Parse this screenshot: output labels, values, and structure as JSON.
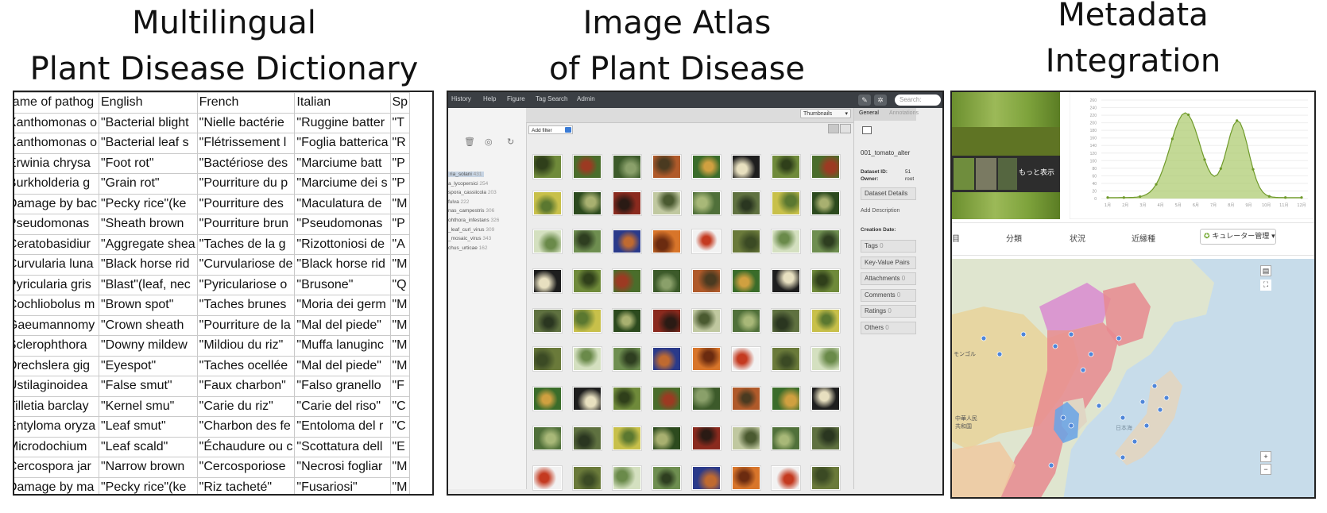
{
  "titles": {
    "dictionary_line1": "Multilingual",
    "dictionary_line2": "Plant Disease Dictionary",
    "atlas_line1": "Image Atlas",
    "atlas_line2": "of Plant Disease",
    "metadata_line1": "Metadata",
    "metadata_line2": "Integration"
  },
  "dictionary": {
    "headers": [
      "me",
      "Name of pathog",
      "English",
      "French",
      "Italian",
      "Sp"
    ],
    "rows": [
      [
        "",
        "\"Xanthomonas o",
        "\"Bacterial blight",
        "\"Nielle bactérie",
        "\"Ruggine batter",
        "\"T"
      ],
      [
        "",
        "\"Xanthomonas o",
        "\"Bacterial leaf s",
        "\"Flétrissement l",
        "\"Foglia batterica",
        "\"R"
      ],
      [
        "",
        "\"Erwinia chrysa",
        "\"Foot rot\"",
        "\"Bactériose des",
        "\"Marciume batt",
        "\"P"
      ],
      [
        "",
        "\"Burkholderia g",
        "\"Grain rot\"",
        "\"Pourriture du p",
        "\"Marciume dei s",
        "\"P"
      ],
      [
        "",
        "\"Damage by bac",
        "\"Pecky rice\"(ke",
        "\"Pourriture des",
        "\"Maculatura de",
        "\"M"
      ],
      [
        "",
        "\"Pseudomonas",
        "\"Sheath brown",
        "\"Pourriture brun",
        "\"Pseudomonas",
        "\"P"
      ],
      [
        "",
        "\"Ceratobasidiur",
        "\"Aggregate shea",
        "\"Taches de la g",
        "\"Rizottoniosi de",
        "\"A"
      ],
      [
        "",
        "\"Curvularia luna",
        "\"Black horse rid",
        "\"Curvulariose de",
        "\"Black horse rid",
        "\"M"
      ],
      [
        "",
        "\"Pyricularia gris",
        "\"Blast\"(leaf, nec",
        "\"Pyriculariose o",
        "\"Brusone\"",
        "\"Q"
      ],
      [
        "",
        "\"Cochliobolus m",
        "\"Brown spot\"",
        "\"Taches brunes",
        "\"Moria dei germ",
        "\"M"
      ],
      [
        "",
        "\"Gaeumannomy",
        "\"Crown sheath",
        "\"Pourriture de la",
        "\"Mal del piede\"",
        "\"M"
      ],
      [
        "",
        "\"Sclerophthora",
        "\"Downy mildew",
        "\"Mildiou du riz\"",
        "\"Muffa lanuginc",
        "\"M"
      ],
      [
        "",
        "\"Drechslera gig",
        "\"Eyespot\"",
        "\"Taches ocellée",
        "\"Mal del piede\"",
        "\"M"
      ],
      [
        "",
        "\"Ustilaginoidea",
        "\"False smut\"",
        "\"Faux charbon\"",
        "\"Falso granello",
        "\"F"
      ],
      [
        "",
        "\"Tilletia barclay",
        "\"Kernel smu\"",
        "\"Carie du riz\"",
        "\"Carie del riso\"",
        "\"C"
      ],
      [
        "",
        "\"Entyloma oryza",
        "\"Leaf smut\"",
        "\"Charbon des fe",
        "\"Entoloma del r",
        "\"C"
      ],
      [
        "",
        "\"Microdochium",
        "\"Leaf scald\"",
        "\"Échaudure ou c",
        "\"Scottatura dell",
        "\"E"
      ],
      [
        "",
        "\"Cercospora jar",
        "\"Narrow brown",
        "\"Cercosporiose",
        "\"Necrosi fogliar",
        "\"M"
      ],
      [
        "",
        "\"Damage by ma",
        "\"Pecky rice\"(ke",
        "\"Riz tacheté\"",
        "\"Fusariosi\"",
        "\"M"
      ]
    ]
  },
  "atlas": {
    "nav": [
      "History",
      "Help",
      "Figure",
      "Tag Search",
      "Admin"
    ],
    "search_placeholder": "Search:",
    "view_mode": "Thumbnails",
    "add_filter": "Add filter",
    "tags": [
      {
        "name": "ria_solani",
        "count": "431"
      },
      {
        "name": "a_lycopersici",
        "count": "254"
      },
      {
        "name": "spora_cassiicola",
        "count": "203"
      },
      {
        "name": "fulva",
        "count": "222"
      },
      {
        "name": "nas_campestris",
        "count": "306"
      },
      {
        "name": "ohthora_infestans",
        "count": "326"
      },
      {
        "name": "_leaf_curl_virus",
        "count": "309"
      },
      {
        "name": "_mosaic_virus",
        "count": "343"
      },
      {
        "name": "chus_urticae",
        "count": "162"
      }
    ],
    "right_tabs": [
      "General",
      "Annotations"
    ],
    "dataset_name": "001_tomato_alter",
    "dataset_id_label": "Dataset ID:",
    "dataset_id_value": "51",
    "owner_label": "Owner:",
    "owner_value": "root",
    "dataset_details": "Dataset Details",
    "add_description": "Add Description",
    "creation_date": "Creation Date:",
    "sections": [
      {
        "label": "Tags",
        "count": "0"
      },
      {
        "label": "Key-Value Pairs",
        "count": ""
      },
      {
        "label": "Attachments",
        "count": "0"
      },
      {
        "label": "Comments",
        "count": "0"
      },
      {
        "label": "Ratings",
        "count": "0"
      },
      {
        "label": "Others",
        "count": "0"
      }
    ]
  },
  "metadata": {
    "more_label": "もっと表示",
    "tabs": [
      "目",
      "分類",
      "状況",
      "近縁種"
    ],
    "curator_button": "キュレーター管理",
    "chart_yticks": [
      "260",
      "240",
      "220",
      "200",
      "180",
      "160",
      "140",
      "120",
      "100",
      "80",
      "60",
      "40",
      "20",
      "0"
    ],
    "chart_xticks": [
      "1月",
      "2月",
      "3月",
      "4月",
      "5月",
      "6月",
      "7月",
      "8月",
      "9月",
      "10月",
      "11月",
      "12月"
    ],
    "map_labels": [
      "モンゴル",
      "中華人民\n共和国",
      "日本海"
    ]
  }
}
